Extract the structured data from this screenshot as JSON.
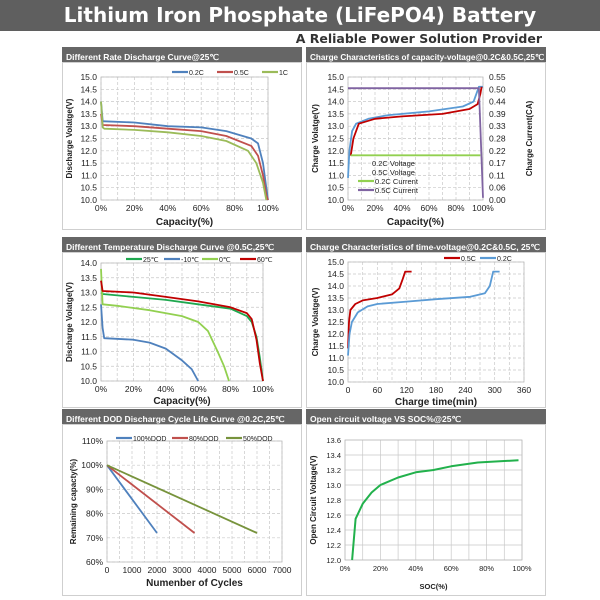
{
  "header": {
    "title": "Lithium Iron Phosphate (LiFePO4) Battery",
    "subtitle": "A Reliable Power Solution Provider"
  },
  "colors": {
    "header_bg": "#5f5f5f",
    "panel_title_bg": "#666666"
  },
  "chart_data": [
    {
      "type": "line",
      "title": "Different Rate Discharge Curve@25℃",
      "xlabel": "Capacity(%)",
      "ylabel": "Discharge Volatge(V)",
      "xlim": [
        0,
        100
      ],
      "ylim": [
        10,
        15
      ],
      "grid": true,
      "legend": "top",
      "x_ticks": [
        0,
        20,
        40,
        60,
        80,
        100
      ],
      "x_tick_labels": [
        "0%",
        "20%",
        "40%",
        "60%",
        "80%",
        "100%"
      ],
      "y_ticks": [
        10,
        10.5,
        11,
        11.5,
        12,
        12.5,
        13,
        13.5,
        14,
        14.5,
        15
      ],
      "y_tick_labels": [
        "10.0",
        "10.5",
        "11.0",
        "11.5",
        "12.0",
        "12.5",
        "13.0",
        "13.5",
        "14.0",
        "14.5",
        "15.0"
      ],
      "series": [
        {
          "name": "0.2C",
          "color": "#4f81bd",
          "points": [
            [
              0,
              14.0
            ],
            [
              1,
              13.2
            ],
            [
              2,
              13.2
            ],
            [
              20,
              13.15
            ],
            [
              40,
              13.0
            ],
            [
              60,
              12.95
            ],
            [
              75,
              12.8
            ],
            [
              90,
              12.5
            ],
            [
              94,
              12.3
            ],
            [
              97,
              11.5
            ],
            [
              99,
              10.5
            ],
            [
              100,
              10.0
            ]
          ]
        },
        {
          "name": "0.5C",
          "color": "#c0504d",
          "points": [
            [
              0,
              13.5
            ],
            [
              1,
              13.05
            ],
            [
              20,
              13.0
            ],
            [
              40,
              12.9
            ],
            [
              60,
              12.8
            ],
            [
              75,
              12.6
            ],
            [
              90,
              12.2
            ],
            [
              94,
              11.8
            ],
            [
              97,
              11.0
            ],
            [
              99,
              10.2
            ],
            [
              100,
              10.0
            ]
          ]
        },
        {
          "name": "1C",
          "color": "#9bbb59",
          "points": [
            [
              0,
              14.0
            ],
            [
              1,
              12.95
            ],
            [
              2,
              12.9
            ],
            [
              20,
              12.85
            ],
            [
              40,
              12.75
            ],
            [
              60,
              12.6
            ],
            [
              75,
              12.4
            ],
            [
              88,
              12.0
            ],
            [
              93,
              11.5
            ],
            [
              97,
              10.7
            ],
            [
              99,
              10.0
            ]
          ]
        }
      ]
    },
    {
      "type": "line",
      "title": "Charge Characteristics of capacity-voltage@0.2C&0.5C,25℃",
      "xlabel": "Capacity(%)",
      "ylabel": "Charge Volatge(V)",
      "y2label": "Charge Current(CA)",
      "xlim": [
        0,
        100
      ],
      "ylim": [
        10,
        15
      ],
      "y2lim": [
        0,
        0.55
      ],
      "grid": true,
      "legend": "bottom-left",
      "x_ticks": [
        0,
        20,
        40,
        60,
        80,
        100
      ],
      "x_tick_labels": [
        "0%",
        "20%",
        "40%",
        "60%",
        "80%",
        "100%"
      ],
      "y_ticks": [
        10,
        10.5,
        11,
        11.5,
        12,
        12.5,
        13,
        13.5,
        14,
        14.5,
        15
      ],
      "y_tick_labels": [
        "10.0",
        "10.5",
        "11.0",
        "11.5",
        "12.0",
        "12.5",
        "13.0",
        "13.5",
        "14.0",
        "14.5",
        "15.0"
      ],
      "y2_ticks": [
        0,
        0.055,
        0.11,
        0.165,
        0.22,
        0.275,
        0.33,
        0.385,
        0.44,
        0.495,
        0.55
      ],
      "y2_tick_labels": [
        "0.00",
        "0.06",
        "0.11",
        "0.17",
        "0.22",
        "0.28",
        "0.33",
        "0.39",
        "0.44",
        "0.50",
        "0.55"
      ],
      "series": [
        {
          "name": "0.2C Voltage",
          "color": "#5b9bd5",
          "axis": "left",
          "points": [
            [
              0,
              10.9
            ],
            [
              1,
              12.0
            ],
            [
              3,
              12.8
            ],
            [
              6,
              13.1
            ],
            [
              15,
              13.3
            ],
            [
              30,
              13.45
            ],
            [
              60,
              13.6
            ],
            [
              85,
              13.8
            ],
            [
              93,
              14.0
            ],
            [
              97,
              14.6
            ],
            [
              100,
              14.6
            ]
          ]
        },
        {
          "name": "0.5C Voltage",
          "color": "#c00000",
          "axis": "left",
          "points": [
            [
              2,
              11.8
            ],
            [
              4,
              12.5
            ],
            [
              8,
              13.1
            ],
            [
              20,
              13.3
            ],
            [
              40,
              13.4
            ],
            [
              70,
              13.5
            ],
            [
              90,
              13.7
            ],
            [
              96,
              13.9
            ],
            [
              98,
              14.3
            ],
            [
              99,
              14.6
            ]
          ]
        },
        {
          "name": "0.2C Current",
          "color": "#92d050",
          "axis": "right",
          "points": [
            [
              2,
              0.2
            ],
            [
              98,
              0.2
            ]
          ]
        },
        {
          "name": "0.5C Current",
          "color": "#8064a2",
          "axis": "right",
          "points": [
            [
              0,
              0.5
            ],
            [
              97,
              0.5
            ],
            [
              100,
              0.01
            ]
          ]
        }
      ]
    },
    {
      "type": "line",
      "title": "Different Temperature Discharge Curve @0.5C,25℃",
      "xlabel": "Capacity(%)",
      "ylabel": "Discharge Volatge(V)",
      "xlim": [
        0,
        100
      ],
      "ylim": [
        10,
        14
      ],
      "grid": true,
      "legend": "top",
      "x_ticks": [
        0,
        20,
        40,
        60,
        80,
        100
      ],
      "x_tick_labels": [
        "0%",
        "20%",
        "40%",
        "60%",
        "80%",
        "100%"
      ],
      "y_ticks": [
        10,
        10.5,
        11,
        11.5,
        12,
        12.5,
        13,
        13.5,
        14
      ],
      "y_tick_labels": [
        "10.0",
        "10.5",
        "11.0",
        "11.5",
        "12.0",
        "12.5",
        "13.0",
        "13.5",
        "14.0"
      ],
      "series": [
        {
          "name": "25℃",
          "color": "#1fa84f",
          "points": [
            [
              0,
              13.0
            ],
            [
              1,
              12.95
            ],
            [
              20,
              12.85
            ],
            [
              40,
              12.75
            ],
            [
              60,
              12.6
            ],
            [
              80,
              12.45
            ],
            [
              90,
              12.2
            ],
            [
              93,
              12.0
            ],
            [
              96,
              11.5
            ],
            [
              98,
              10.8
            ],
            [
              100,
              10.0
            ]
          ]
        },
        {
          "name": "-10℃",
          "color": "#4f81bd",
          "points": [
            [
              0,
              12.6
            ],
            [
              1,
              11.8
            ],
            [
              2,
              11.45
            ],
            [
              20,
              11.4
            ],
            [
              30,
              11.3
            ],
            [
              40,
              11.1
            ],
            [
              50,
              10.7
            ],
            [
              56,
              10.4
            ],
            [
              60,
              10.0
            ]
          ]
        },
        {
          "name": "0℃",
          "color": "#92d050",
          "points": [
            [
              0,
              13.8
            ],
            [
              1,
              12.6
            ],
            [
              10,
              12.55
            ],
            [
              30,
              12.4
            ],
            [
              50,
              12.2
            ],
            [
              60,
              12.0
            ],
            [
              66,
              11.7
            ],
            [
              72,
              11.0
            ],
            [
              76,
              10.5
            ],
            [
              79,
              10.0
            ]
          ]
        },
        {
          "name": "60℃",
          "color": "#c00000",
          "points": [
            [
              0,
              13.4
            ],
            [
              1,
              13.05
            ],
            [
              20,
              13.0
            ],
            [
              40,
              12.85
            ],
            [
              60,
              12.7
            ],
            [
              80,
              12.5
            ],
            [
              90,
              12.3
            ],
            [
              93,
              12.1
            ],
            [
              96,
              11.4
            ],
            [
              98,
              10.6
            ],
            [
              100,
              10.0
            ]
          ]
        }
      ]
    },
    {
      "type": "line",
      "title": "Charge Characteristics of time-voltage@0.2C&0.5C, 25℃",
      "xlabel": "Charge time(min)",
      "ylabel": "Charge Volatge(V)",
      "xlim": [
        0,
        360
      ],
      "ylim": [
        10,
        15
      ],
      "grid": true,
      "legend": "top-right",
      "x_ticks": [
        0,
        60,
        120,
        180,
        240,
        300,
        360
      ],
      "x_tick_labels": [
        "0",
        "60",
        "120",
        "180",
        "240",
        "300",
        "360"
      ],
      "y_ticks": [
        10,
        10.5,
        11,
        11.5,
        12,
        12.5,
        13,
        13.5,
        14,
        14.5,
        15
      ],
      "y_tick_labels": [
        "10.0",
        "10.5",
        "11.0",
        "11.5",
        "12.0",
        "12.5",
        "13.0",
        "13.5",
        "14.0",
        "14.5",
        "15.0"
      ],
      "series": [
        {
          "name": "0.5C",
          "color": "#c00000",
          "points": [
            [
              0,
              11.4
            ],
            [
              2,
              12.5
            ],
            [
              5,
              13.0
            ],
            [
              15,
              13.25
            ],
            [
              30,
              13.4
            ],
            [
              60,
              13.5
            ],
            [
              90,
              13.65
            ],
            [
              105,
              13.9
            ],
            [
              112,
              14.3
            ],
            [
              117,
              14.6
            ],
            [
              130,
              14.6
            ]
          ]
        },
        {
          "name": "0.2C",
          "color": "#5b9bd5",
          "points": [
            [
              0,
              11.1
            ],
            [
              3,
              12.0
            ],
            [
              8,
              12.5
            ],
            [
              20,
              12.9
            ],
            [
              40,
              13.15
            ],
            [
              60,
              13.25
            ],
            [
              120,
              13.35
            ],
            [
              180,
              13.45
            ],
            [
              250,
              13.55
            ],
            [
              280,
              13.7
            ],
            [
              290,
              14.0
            ],
            [
              297,
              14.6
            ],
            [
              310,
              14.6
            ]
          ]
        }
      ]
    },
    {
      "type": "line",
      "title": "Different DOD Discharge Cycle Life Curve @0.2C,25℃",
      "xlabel": "Numenber of Cycles",
      "ylabel": "Remaining capacty(%)",
      "xlim": [
        0,
        7000
      ],
      "ylim": [
        60,
        110
      ],
      "grid": true,
      "legend": "top",
      "x_ticks": [
        0,
        1000,
        2000,
        3000,
        4000,
        5000,
        6000,
        7000
      ],
      "x_tick_labels": [
        "0",
        "1000",
        "2000",
        "3000",
        "4000",
        "5000",
        "6000",
        "7000"
      ],
      "y_ticks": [
        60,
        70,
        80,
        90,
        100,
        110
      ],
      "y_tick_labels": [
        "60%",
        "70%",
        "80%",
        "90%",
        "100%",
        "110%"
      ],
      "series": [
        {
          "name": "100%DOD",
          "color": "#4f81bd",
          "points": [
            [
              0,
              100
            ],
            [
              2000,
              72
            ]
          ]
        },
        {
          "name": "80%DOD",
          "color": "#c0504d",
          "points": [
            [
              0,
              100
            ],
            [
              3500,
              72
            ]
          ]
        },
        {
          "name": "50%DOD",
          "color": "#77933c",
          "points": [
            [
              0,
              100
            ],
            [
              6000,
              72
            ]
          ]
        }
      ]
    },
    {
      "type": "line",
      "title": "Open circuit voltage VS SOC%@25℃",
      "xlabel": "SOC(%)",
      "ylabel": "Open Circuit Voltage(V)",
      "xlim": [
        0,
        100
      ],
      "ylim": [
        12.0,
        13.6
      ],
      "grid": true,
      "legend": "none",
      "x_ticks": [
        0,
        20,
        40,
        60,
        80,
        100
      ],
      "x_tick_labels": [
        "0%",
        "20%",
        "40%",
        "60%",
        "80%",
        "100%"
      ],
      "y_ticks": [
        12.0,
        12.2,
        12.4,
        12.6,
        12.8,
        13.0,
        13.2,
        13.4,
        13.6
      ],
      "y_tick_labels": [
        "12.0",
        "12.2",
        "12.4",
        "12.6",
        "12.8",
        "13.0",
        "13.2",
        "13.4",
        "13.6"
      ],
      "series": [
        {
          "color": "#22b14c",
          "points": [
            [
              4,
              12.0
            ],
            [
              6,
              12.55
            ],
            [
              10,
              12.75
            ],
            [
              15,
              12.9
            ],
            [
              20,
              13.0
            ],
            [
              30,
              13.1
            ],
            [
              40,
              13.17
            ],
            [
              50,
              13.2
            ],
            [
              60,
              13.25
            ],
            [
              75,
              13.3
            ],
            [
              90,
              13.32
            ],
            [
              98,
              13.33
            ]
          ]
        }
      ]
    }
  ]
}
